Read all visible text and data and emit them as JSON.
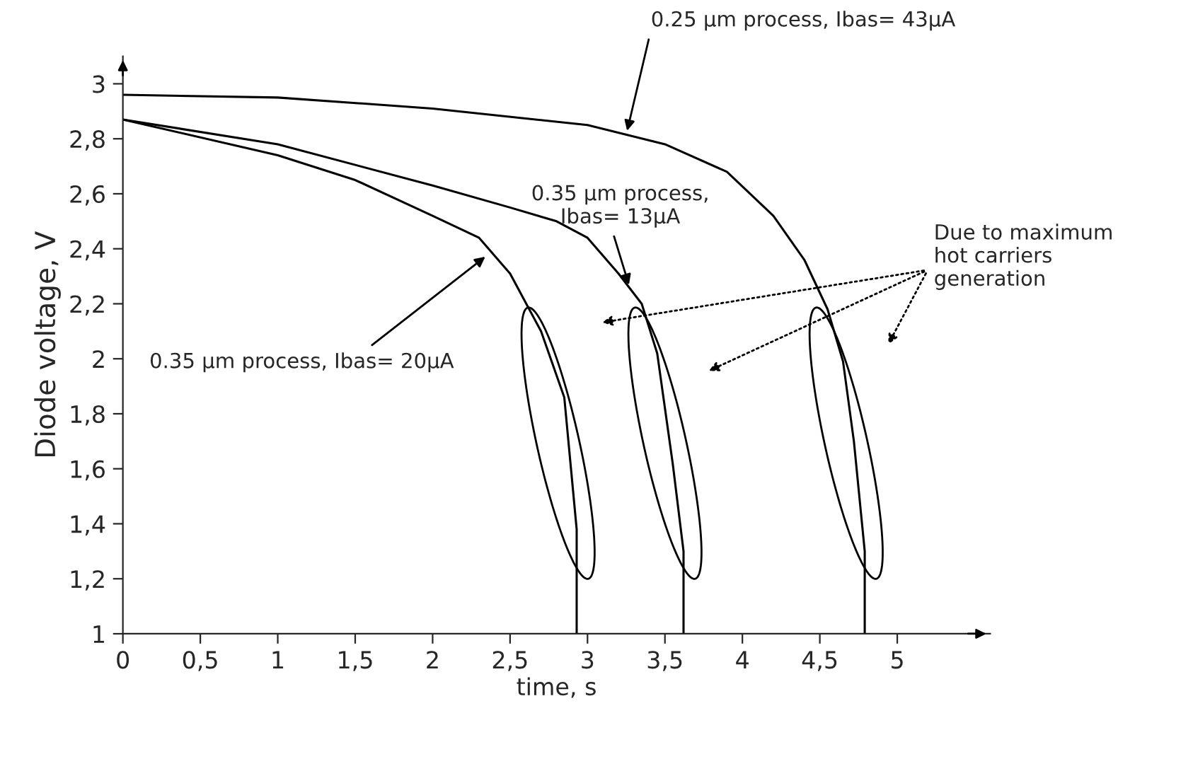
{
  "chart_data": {
    "type": "line",
    "xlabel": "time, s",
    "ylabel": "Diode voltage, V",
    "xlim": [
      0,
      5.6
    ],
    "ylim": [
      1,
      3.1
    ],
    "xticks": [
      0,
      {
        "value": 0.5,
        "label": "0,5"
      },
      1,
      {
        "value": 1.5,
        "label": "1,5"
      },
      2,
      {
        "value": 2.5,
        "label": "2,5"
      },
      3,
      {
        "value": 3.5,
        "label": "3,5"
      },
      4,
      {
        "value": 4.5,
        "label": "4,5"
      },
      5
    ],
    "yticks": [
      1,
      {
        "value": 1.2,
        "label": "1,2"
      },
      {
        "value": 1.4,
        "label": "1,4"
      },
      {
        "value": 1.6,
        "label": "1,6"
      },
      {
        "value": 1.8,
        "label": "1,8"
      },
      2,
      {
        "value": 2.2,
        "label": "2,2"
      },
      {
        "value": 2.4,
        "label": "2,4"
      },
      {
        "value": 2.6,
        "label": "2,6"
      },
      {
        "value": 2.8,
        "label": "2,8"
      },
      3
    ],
    "grid": false,
    "legend": false,
    "marker": "none",
    "line_style": "solid",
    "series": [
      {
        "color": "#000000",
        "x": [
          0,
          1,
          1.5,
          2,
          2.3,
          2.5,
          2.7,
          2.85,
          2.93,
          2.93
        ],
        "values": [
          2.87,
          2.74,
          2.65,
          2.52,
          2.44,
          2.31,
          2.1,
          1.86,
          1.38,
          1
        ]
      },
      {
        "color": "#000000",
        "x": [
          0,
          1,
          2,
          2.5,
          2.8,
          3,
          3.2,
          3.35,
          3.45,
          3.55,
          3.62,
          3.62
        ],
        "values": [
          2.87,
          2.78,
          2.63,
          2.55,
          2.5,
          2.44,
          2.31,
          2.2,
          2.02,
          1.62,
          1.3,
          1
        ]
      },
      {
        "color": "#000000",
        "x": [
          0,
          1,
          2,
          3,
          3.5,
          3.9,
          4.2,
          4.4,
          4.55,
          4.65,
          4.72,
          4.79,
          4.79
        ],
        "values": [
          2.96,
          2.95,
          2.91,
          2.85,
          2.78,
          2.68,
          2.52,
          2.36,
          2.18,
          1.99,
          1.7,
          1.3,
          1
        ]
      }
    ],
    "annotations": [
      {
        "text": "0.35 µm process, Ibas= 20µA",
        "x": 2.36,
        "y": 2.38
      },
      {
        "text": "0.35 µm process,\nIbas= 13µA",
        "x": 3.275,
        "y": 2.255
      },
      {
        "text": "0.25 µm process, Ibas= 43µA",
        "x": 3.25,
        "y": 2.815
      },
      "Due to maximum\nhot carriers\ngeneration"
    ]
  }
}
